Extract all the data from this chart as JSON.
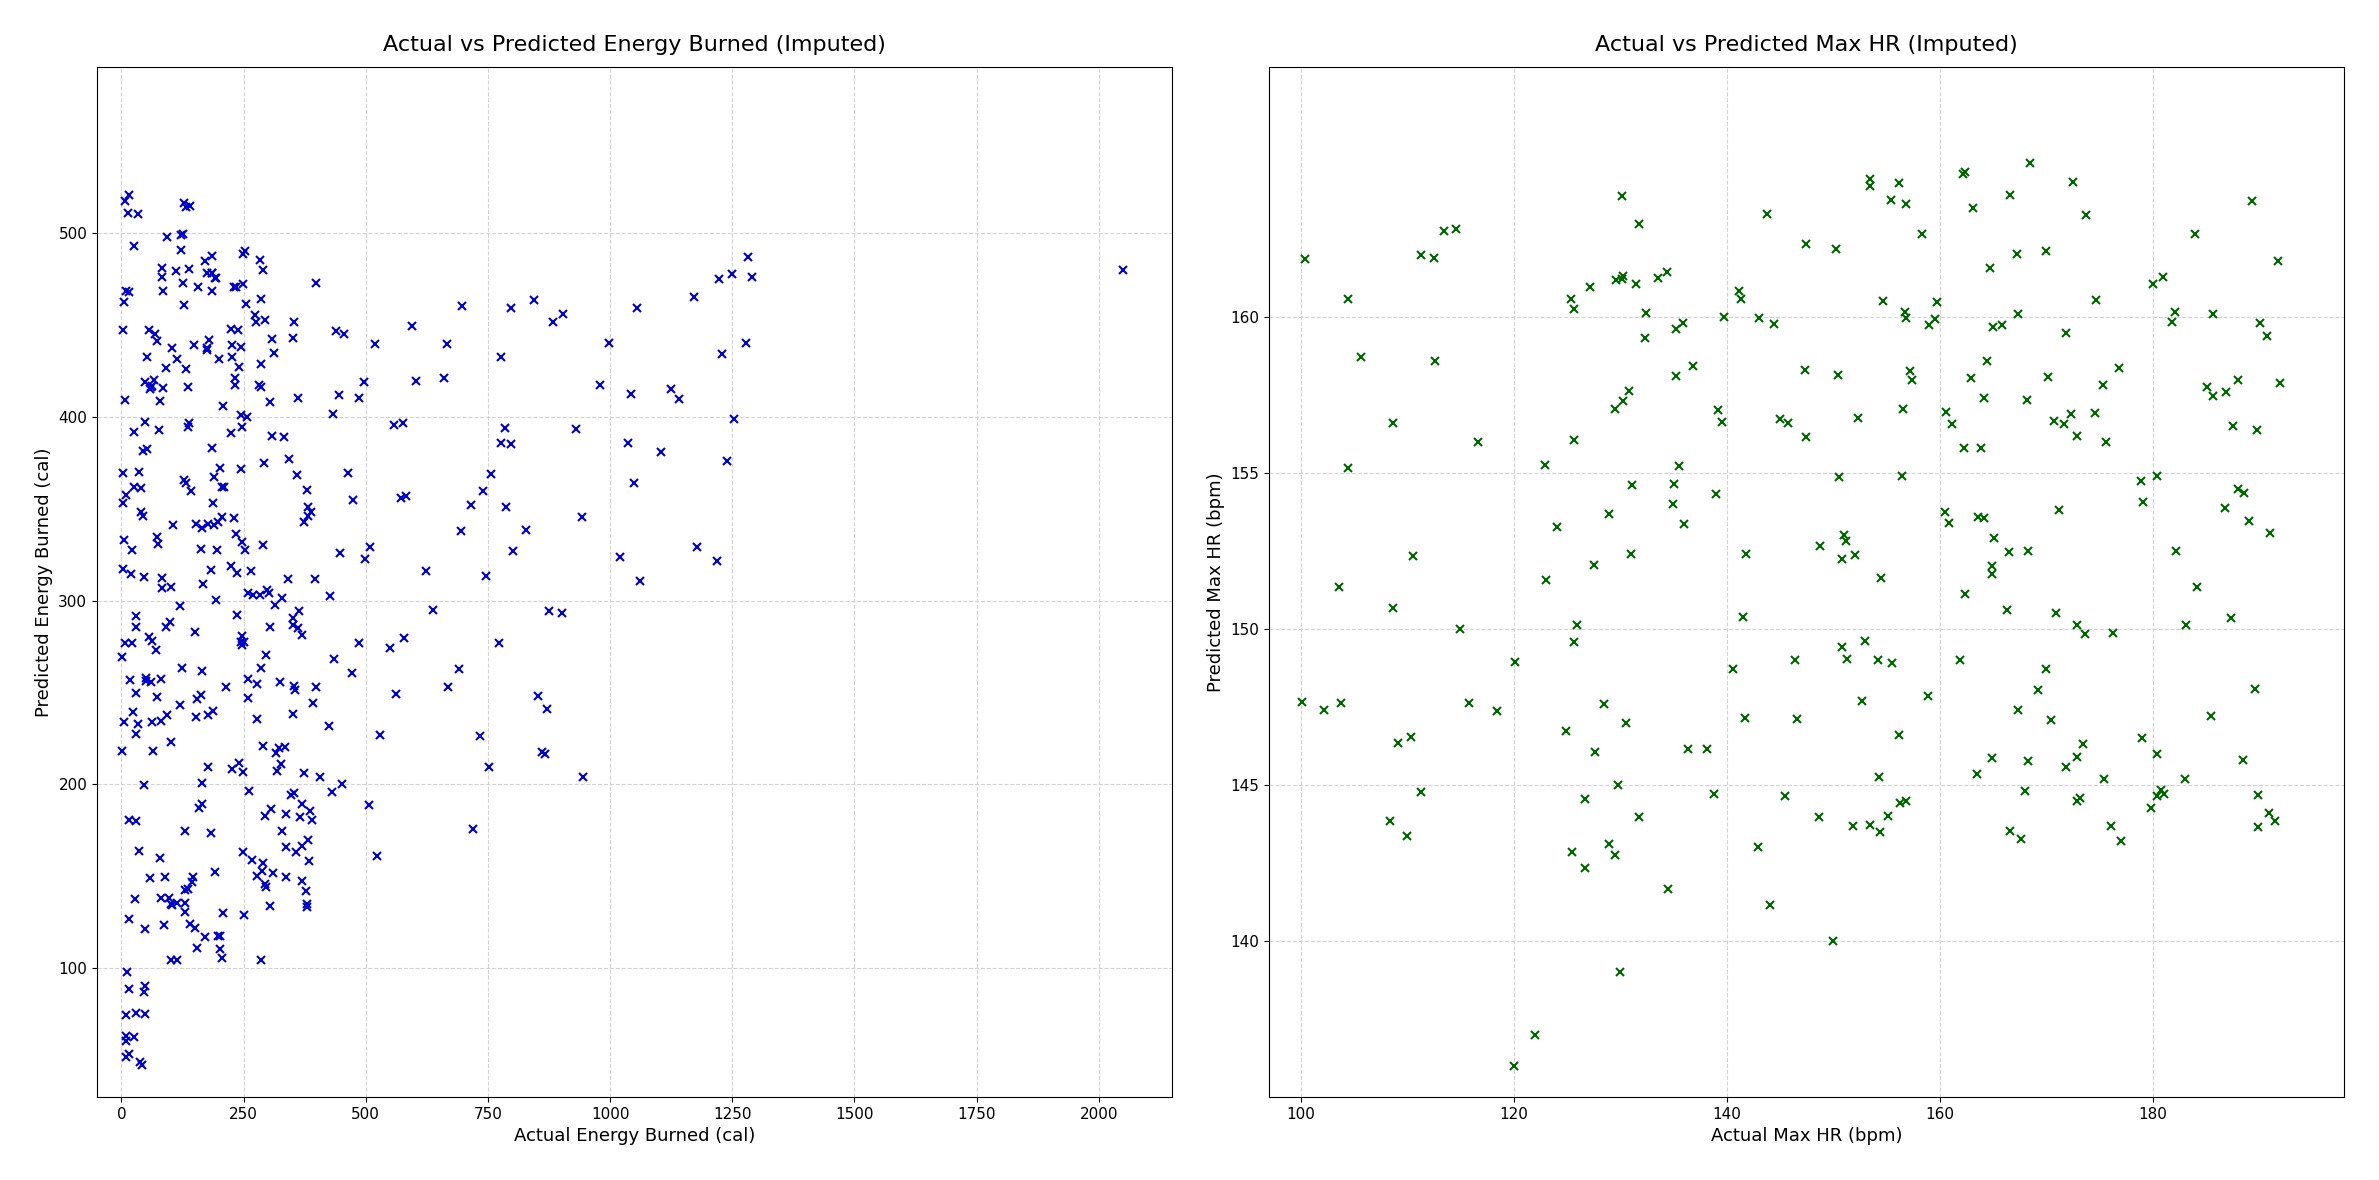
{
  "fig_width": 23.79,
  "fig_height": 11.8,
  "dpi": 100,
  "subplot1": {
    "title": "Actual vs Predicted Energy Burned (Imputed)",
    "xlabel": "Actual Energy Burned (cal)",
    "ylabel": "Predicted Energy Burned (cal)",
    "color": "#0000cc",
    "xlim": [
      -50,
      2150
    ],
    "ylim": [
      30,
      590
    ],
    "xticks": [
      0,
      250,
      500,
      750,
      1000,
      1250,
      1500,
      1750,
      2000
    ],
    "yticks": [
      100,
      200,
      300,
      400,
      500
    ]
  },
  "subplot2": {
    "title": "Actual vs Predicted Max HR (Imputed)",
    "xlabel": "Actual Max HR (bpm)",
    "ylabel": "Predicted Max HR (bpm)",
    "color": "#006400",
    "xlim": [
      97,
      198
    ],
    "ylim": [
      135,
      168
    ],
    "xticks": [
      100,
      120,
      140,
      160,
      180
    ],
    "yticks": [
      140,
      145,
      150,
      155,
      160
    ]
  }
}
